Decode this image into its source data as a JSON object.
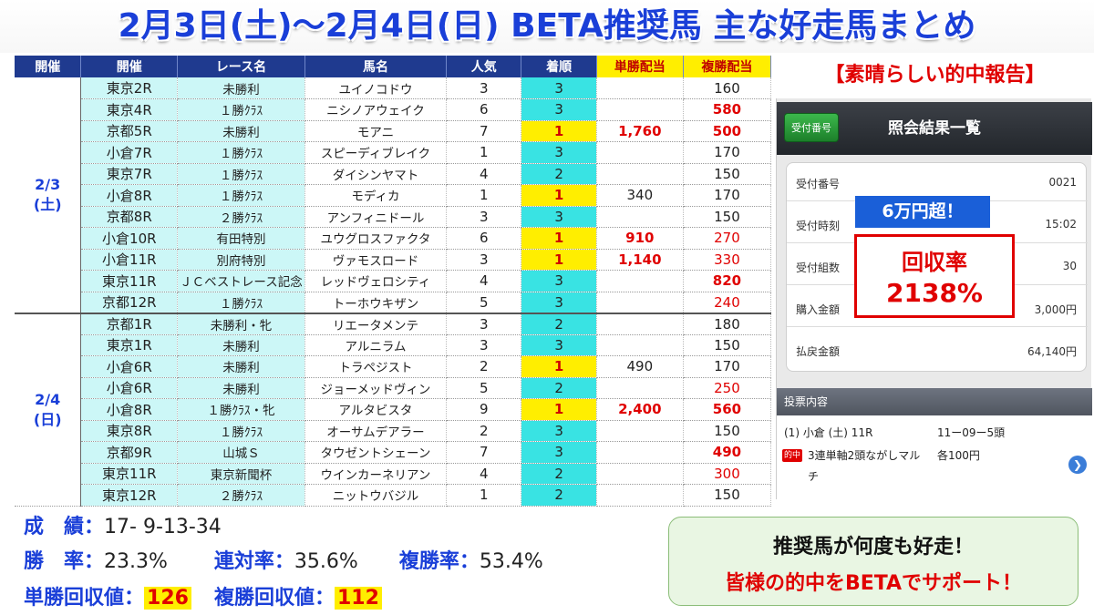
{
  "title": "2月3日(土)～2月4日(日) BETA推奨馬 主な好走馬まとめ",
  "table": {
    "headers": [
      "開催",
      "開催",
      "レース名",
      "馬名",
      "人気",
      "着順",
      "単勝配当",
      "複勝配当"
    ],
    "day1_label": "2/3\n(土)",
    "day2_label": "2/4\n(日)",
    "day1_rows": [
      {
        "race": "東京2R",
        "name": "未勝利",
        "horse": "ユイノコドウ",
        "pop": "3",
        "finish": "3",
        "win": "",
        "place": "160",
        "win_red": false,
        "place_red": false
      },
      {
        "race": "東京4R",
        "name": "１勝ｸﾗｽ",
        "horse": "ニシノアウェイク",
        "pop": "6",
        "finish": "3",
        "win": "",
        "place": "580",
        "win_red": false,
        "place_red": true
      },
      {
        "race": "京都5R",
        "name": "未勝利",
        "horse": "モアニ",
        "pop": "7",
        "finish": "1",
        "win": "1,760",
        "place": "500",
        "win_red": true,
        "place_red": true
      },
      {
        "race": "小倉7R",
        "name": "１勝ｸﾗｽ",
        "horse": "スピーディブレイク",
        "pop": "1",
        "finish": "3",
        "win": "",
        "place": "170",
        "win_red": false,
        "place_red": false
      },
      {
        "race": "東京7R",
        "name": "１勝ｸﾗｽ",
        "horse": "ダイシンヤマト",
        "pop": "4",
        "finish": "2",
        "win": "",
        "place": "150",
        "win_red": false,
        "place_red": false
      },
      {
        "race": "小倉8R",
        "name": "１勝ｸﾗｽ",
        "horse": "モディカ",
        "pop": "1",
        "finish": "1",
        "win": "340",
        "place": "170",
        "win_red": false,
        "place_red": false
      },
      {
        "race": "京都8R",
        "name": "２勝ｸﾗｽ",
        "horse": "アンフィニドール",
        "pop": "3",
        "finish": "3",
        "win": "",
        "place": "150",
        "win_red": false,
        "place_red": false
      },
      {
        "race": "小倉10R",
        "name": "有田特別",
        "horse": "ユウグロスファクタ",
        "pop": "6",
        "finish": "1",
        "win": "910",
        "place": "270",
        "win_red": true,
        "place_red": "n"
      },
      {
        "race": "小倉11R",
        "name": "別府特別",
        "horse": "ヴァモスロード",
        "pop": "3",
        "finish": "1",
        "win": "1,140",
        "place": "330",
        "win_red": true,
        "place_red": "n"
      },
      {
        "race": "東京11R",
        "name": "ＪＣベストレース記念",
        "horse": "レッドヴェロシティ",
        "pop": "4",
        "finish": "3",
        "win": "",
        "place": "820",
        "win_red": false,
        "place_red": true
      },
      {
        "race": "京都12R",
        "name": "１勝ｸﾗｽ",
        "horse": "トーホウキザン",
        "pop": "5",
        "finish": "3",
        "win": "",
        "place": "240",
        "win_red": false,
        "place_red": "n"
      }
    ],
    "day2_rows": [
      {
        "race": "京都1R",
        "name": "未勝利・牝",
        "horse": "リエータメンテ",
        "pop": "3",
        "finish": "2",
        "win": "",
        "place": "180",
        "win_red": false,
        "place_red": false
      },
      {
        "race": "東京1R",
        "name": "未勝利",
        "horse": "アルニラム",
        "pop": "3",
        "finish": "3",
        "win": "",
        "place": "150",
        "win_red": false,
        "place_red": false
      },
      {
        "race": "小倉6R",
        "name": "未勝利",
        "horse": "トラペジスト",
        "pop": "2",
        "finish": "1",
        "win": "490",
        "place": "170",
        "win_red": false,
        "place_red": false
      },
      {
        "race": "小倉6R",
        "name": "未勝利",
        "horse": "ジョーメッドヴィン",
        "pop": "5",
        "finish": "2",
        "win": "",
        "place": "250",
        "win_red": false,
        "place_red": "n"
      },
      {
        "race": "小倉8R",
        "name": "１勝ｸﾗｽ・牝",
        "horse": "アルタビスタ",
        "pop": "9",
        "finish": "1",
        "win": "2,400",
        "place": "560",
        "win_red": true,
        "place_red": true
      },
      {
        "race": "東京8R",
        "name": "１勝ｸﾗｽ",
        "horse": "オーサムデアラー",
        "pop": "2",
        "finish": "3",
        "win": "",
        "place": "150",
        "win_red": false,
        "place_red": false
      },
      {
        "race": "京都9R",
        "name": "山城Ｓ",
        "horse": "タウゼントシェーン",
        "pop": "7",
        "finish": "3",
        "win": "",
        "place": "490",
        "win_red": false,
        "place_red": true
      },
      {
        "race": "東京11R",
        "name": "東京新聞杯",
        "horse": "ウインカーネリアン",
        "pop": "4",
        "finish": "2",
        "win": "",
        "place": "300",
        "win_red": false,
        "place_red": "n"
      },
      {
        "race": "東京12R",
        "name": "２勝ｸﾗｽ",
        "horse": "ニットウバジル",
        "pop": "1",
        "finish": "2",
        "win": "",
        "place": "150",
        "win_red": false,
        "place_red": false
      }
    ]
  },
  "praise": "【素晴らしい的中報告】",
  "phone": {
    "uketsuke_button": "受付番号",
    "title": "照会結果一覧",
    "info": [
      {
        "k": "受付番号",
        "v": "0021"
      },
      {
        "k": "受付時刻",
        "v": "15:02"
      },
      {
        "k": "受付組数",
        "v": "30"
      },
      {
        "k": "購入金額",
        "v": "3,000円"
      },
      {
        "k": "払戻金額",
        "v": "64,140円"
      }
    ],
    "vote_header": "投票内容",
    "vote_line1": "(1)  小倉 (土) 11R",
    "vote_line1b": "11ー09ー5頭",
    "hit_badge": "的中",
    "vote_line2": "3連単軸2頭ながしマル",
    "vote_line2b": "各100円",
    "vote_line3": "チ"
  },
  "over_badge": "6万円超！",
  "kaishu": {
    "label": "回収率",
    "value": "2138%"
  },
  "stats": {
    "seiseki_label": "成　績：",
    "seiseki_value": "17- 9-13-34",
    "shoritsu_label": "勝　率：",
    "shoritsu_value": "23.3%",
    "rentai_label": "連対率：",
    "rentai_value": "35.6%",
    "fukusho_label": "複勝率：",
    "fukusho_value": "53.4%",
    "tan_label": "単勝回収値：",
    "tan_value": "126",
    "fuku_label": "複勝回収値：",
    "fuku_value": "112"
  },
  "callout": {
    "line1": "推奨馬が何度も好走！",
    "line2": "皆様の的中をBETAでサポート！"
  },
  "colors": {
    "title_blue": "#1a3fd8",
    "header_navy": "#1f3a8f",
    "highlight_yellow": "#ffee00",
    "cyan": "#39e3e3",
    "red": "#e00000"
  }
}
